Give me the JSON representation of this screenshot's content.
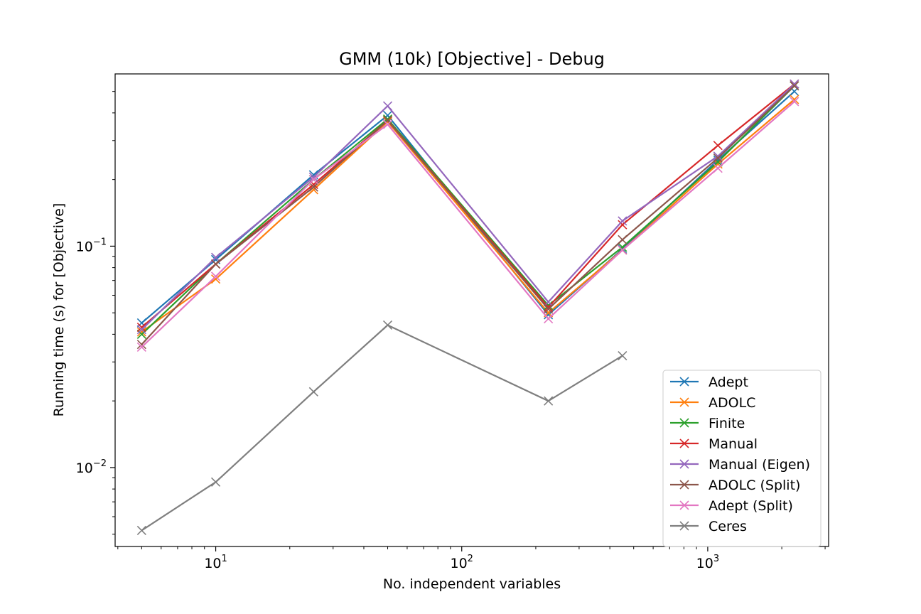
{
  "chart_data": {
    "type": "line",
    "title": "GMM (10k) [Objective] - Debug",
    "xlabel": "No. independent variables",
    "ylabel": "Running time (s) for [Objective]",
    "xscale": "log",
    "yscale": "log",
    "xlim": [
      3.9,
      3100
    ],
    "ylim": [
      0.0044,
      0.6
    ],
    "x_ticks": [
      {
        "base": "10",
        "exp": "1",
        "value": 10
      },
      {
        "base": "10",
        "exp": "2",
        "value": 100
      },
      {
        "base": "10",
        "exp": "3",
        "value": 1000
      }
    ],
    "y_ticks": [
      {
        "base": "10",
        "exp": "−2",
        "value": 0.01
      },
      {
        "base": "10",
        "exp": "−1",
        "value": 0.1
      }
    ],
    "grid": false,
    "legend_position": "lower-right",
    "marker": "x",
    "x": [
      5,
      10,
      25,
      50,
      225,
      450,
      1100,
      2250
    ],
    "series": [
      {
        "name": "Adept",
        "color": "#1f77b4",
        "values": [
          0.045,
          0.087,
          0.21,
          0.39,
          0.049,
          0.097,
          0.245,
          0.5
        ]
      },
      {
        "name": "ADOLC",
        "color": "#ff7f0e",
        "values": [
          0.041,
          0.071,
          0.18,
          0.365,
          0.05,
          0.096,
          0.235,
          0.46
        ]
      },
      {
        "name": "Finite",
        "color": "#2ca02c",
        "values": [
          0.04,
          0.083,
          0.2,
          0.375,
          0.054,
          0.099,
          0.24,
          0.53
        ]
      },
      {
        "name": "Manual",
        "color": "#d62728",
        "values": [
          0.043,
          0.083,
          0.19,
          0.37,
          0.053,
          0.125,
          0.285,
          0.54
        ]
      },
      {
        "name": "Manual (Eigen)",
        "color": "#9467bd",
        "values": [
          0.042,
          0.089,
          0.205,
          0.43,
          0.056,
          0.13,
          0.255,
          0.54
        ]
      },
      {
        "name": "ADOLC (Split)",
        "color": "#8c564b",
        "values": [
          0.036,
          0.083,
          0.185,
          0.37,
          0.052,
          0.107,
          0.25,
          0.53
        ]
      },
      {
        "name": "Adept (Split)",
        "color": "#e377c2",
        "values": [
          0.035,
          0.073,
          0.2,
          0.355,
          0.047,
          0.096,
          0.225,
          0.45
        ]
      },
      {
        "name": "Ceres",
        "color": "#7f7f7f",
        "values": [
          0.0052,
          0.0086,
          0.022,
          0.044,
          0.02,
          0.032,
          null,
          null
        ]
      }
    ]
  }
}
